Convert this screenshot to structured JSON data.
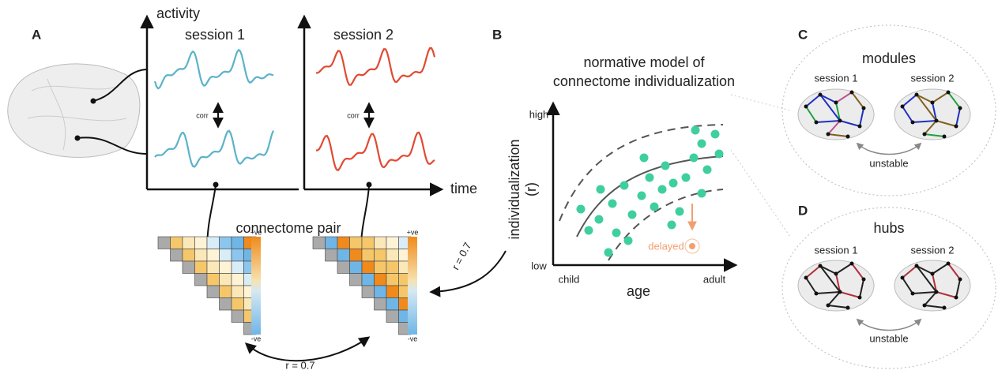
{
  "panel_a": {
    "label": "A",
    "y_axis_label": "activity",
    "x_axis_label": "time",
    "sessions": [
      "session 1",
      "session 2"
    ],
    "corr_labels": [
      "corr",
      "corr"
    ],
    "matrix_title": "connectome pair",
    "colorbar_labels": [
      [
        "+ve",
        "-ve"
      ],
      [
        "+ve",
        "-ve"
      ]
    ],
    "similarity_labels": [
      "r = 0.7",
      "r = 0.7"
    ]
  },
  "panel_b": {
    "label": "B",
    "title": [
      "normative model of",
      "connectome individualization"
    ],
    "y_axis_label": "individualization",
    "y_axis_unit": "(r)",
    "y_ticks": [
      "high",
      "low"
    ],
    "x_ticks": [
      "child",
      "adult"
    ],
    "x_axis_label": "age",
    "annotation": "delayed"
  },
  "panel_c": {
    "label": "C",
    "title": "modules",
    "sessions": [
      "session 1",
      "session 2"
    ],
    "caption": "unstable"
  },
  "panel_d": {
    "label": "D",
    "title": "hubs",
    "sessions": [
      "session 1",
      "session 2"
    ],
    "caption": "unstable"
  }
}
